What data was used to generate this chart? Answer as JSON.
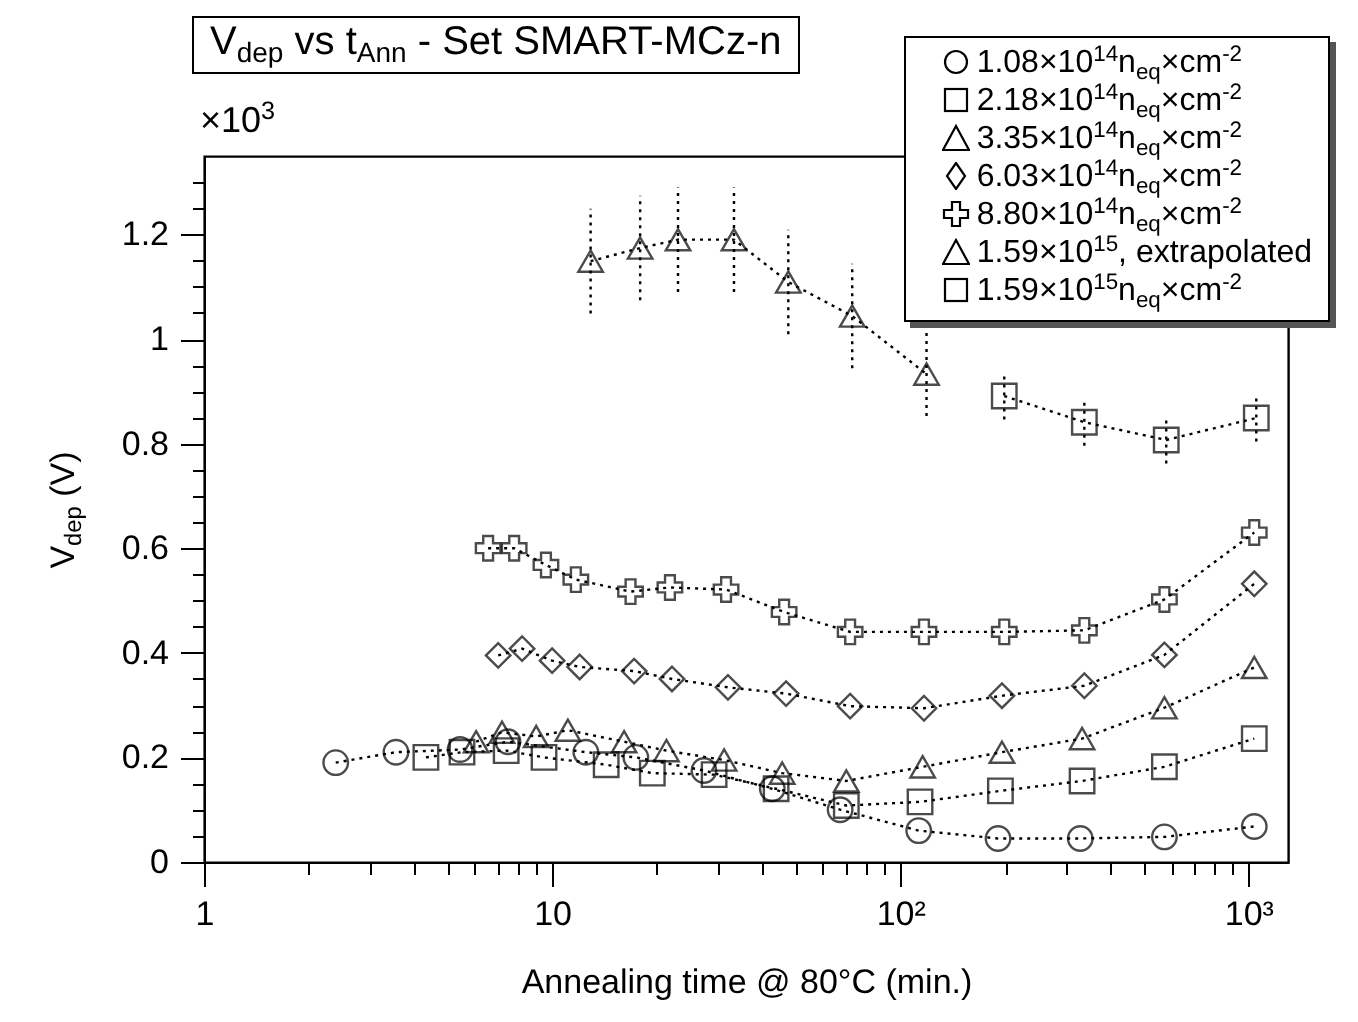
{
  "chart_data": {
    "type": "line",
    "title": "V$_{dep}$ vs t$_{Ann}$ - Set SMART-MCz-n",
    "xlabel": "Annealing time @ 80°C (min.)",
    "ylabel": "V$_{dep}$ (V)",
    "annotations": [
      "×10$^{3}$"
    ],
    "log": "x",
    "grid": false,
    "legend": "top right",
    "line_style": "dotted",
    "xlim": [
      1,
      1300
    ],
    "ylim": [
      0,
      1.35
    ],
    "xticks": [
      {
        "value": 1,
        "label": "1"
      },
      {
        "value": 2,
        "label": null
      },
      {
        "value": 3,
        "label": null
      },
      {
        "value": 4,
        "label": null
      },
      {
        "value": 5,
        "label": null
      },
      {
        "value": 6,
        "label": null
      },
      {
        "value": 7,
        "label": null
      },
      {
        "value": 8,
        "label": null
      },
      {
        "value": 9,
        "label": null
      },
      {
        "value": 10,
        "label": "10"
      },
      {
        "value": 20,
        "label": null
      },
      {
        "value": 30,
        "label": null
      },
      {
        "value": 40,
        "label": null
      },
      {
        "value": 50,
        "label": null
      },
      {
        "value": 60,
        "label": null
      },
      {
        "value": 70,
        "label": null
      },
      {
        "value": 80,
        "label": null
      },
      {
        "value": 90,
        "label": null
      },
      {
        "value": 100,
        "label": "10²"
      },
      {
        "value": 200,
        "label": null
      },
      {
        "value": 300,
        "label": null
      },
      {
        "value": 400,
        "label": null
      },
      {
        "value": 500,
        "label": null
      },
      {
        "value": 600,
        "label": null
      },
      {
        "value": 700,
        "label": null
      },
      {
        "value": 800,
        "label": null
      },
      {
        "value": 900,
        "label": null
      },
      {
        "value": 1000,
        "label": "10³"
      }
    ],
    "yticks": [
      0,
      {
        "value": 0.05,
        "label": null
      },
      {
        "value": 0.1,
        "label": null
      },
      {
        "value": 0.15,
        "label": null
      },
      0.2,
      {
        "value": 0.25,
        "label": null
      },
      {
        "value": 0.3,
        "label": null
      },
      {
        "value": 0.35,
        "label": null
      },
      0.4,
      {
        "value": 0.45,
        "label": null
      },
      {
        "value": 0.5,
        "label": null
      },
      {
        "value": 0.55,
        "label": null
      },
      0.6,
      {
        "value": 0.65,
        "label": null
      },
      {
        "value": 0.7,
        "label": null
      },
      {
        "value": 0.75,
        "label": null
      },
      0.8,
      {
        "value": 0.85,
        "label": null
      },
      {
        "value": 0.9,
        "label": null
      },
      {
        "value": 0.95,
        "label": null
      },
      1,
      {
        "value": 1.05,
        "label": null
      },
      {
        "value": 1.1,
        "label": null
      },
      {
        "value": 1.15,
        "label": null
      },
      1.2,
      {
        "value": 1.25,
        "label": null
      },
      {
        "value": 1.3,
        "label": null
      }
    ],
    "series": [
      {
        "name": "1.08×10$^{14}$n$_{eq}$×cm$^{-2}$",
        "color": "#000000",
        "marker": "circle",
        "x": [
          2.39,
          3.56,
          5.44,
          7.47,
          12.5,
          17.4,
          27.3,
          42.9,
          67.2,
          113,
          191,
          329,
          574,
          1040
        ],
        "values": [
          0.19,
          0.21,
          0.215,
          0.23,
          0.21,
          0.2,
          0.175,
          0.14,
          0.1,
          0.06,
          0.045,
          0.045,
          0.048,
          0.068
        ]
      },
      {
        "name": "2.18×10$^{14}$n$_{eq}$×cm$^{-2}$",
        "color": "#000000",
        "marker": "square",
        "x": [
          4.34,
          5.51,
          7.38,
          9.48,
          14.3,
          19.4,
          29.2,
          44,
          70,
          114,
          194,
          333,
          574,
          1040
        ],
        "values": [
          0.2,
          0.21,
          0.213,
          0.2,
          0.186,
          0.17,
          0.167,
          0.14,
          0.108,
          0.115,
          0.136,
          0.155,
          0.182,
          0.236
        ]
      },
      {
        "name": "3.35×10$^{14}$n$_{eq}$×cm$^{-2}$",
        "color": "#000000",
        "marker": "triangle",
        "x": [
          6.05,
          7.18,
          9.0,
          11.1,
          16.1,
          21.3,
          31.2,
          45.8,
          70,
          116,
          196,
          333,
          574,
          1040
        ],
        "values": [
          0.23,
          0.248,
          0.24,
          0.252,
          0.23,
          0.213,
          0.195,
          0.17,
          0.155,
          0.182,
          0.21,
          0.236,
          0.295,
          0.372
        ]
      },
      {
        "name": "6.03×10$^{14}$n$_{eq}$×cm$^{-2}$",
        "color": "#000000",
        "marker": "diamond",
        "x": [
          7.0,
          8.2,
          10.0,
          12.0,
          17.2,
          22.1,
          32.0,
          47.0,
          71.8,
          117,
          196,
          338,
          574,
          1040
        ],
        "values": [
          0.395,
          0.408,
          0.385,
          0.373,
          0.365,
          0.35,
          0.334,
          0.322,
          0.298,
          0.294,
          0.318,
          0.337,
          0.396,
          0.532
        ]
      },
      {
        "name": "8.80×10$^{14}$n$_{eq}$×cm$^{-2}$",
        "color": "#000000",
        "marker": "cross",
        "x": [
          6.55,
          7.78,
          9.6,
          11.7,
          16.8,
          21.8,
          31.6,
          46.4,
          71.8,
          117,
          199,
          338,
          574,
          1040
        ],
        "values": [
          0.6,
          0.6,
          0.568,
          0.54,
          0.517,
          0.525,
          0.521,
          0.478,
          0.44,
          0.44,
          0.44,
          0.443,
          0.502,
          0.63
        ]
      },
      {
        "name": "1.59×10$^{15}$, extrapolated",
        "color": "#000000",
        "marker": "triangle",
        "x": [
          12.9,
          17.9,
          23.0,
          33.3,
          47.7,
          72.8,
          119
        ],
        "values": [
          1.149,
          1.174,
          1.19,
          1.19,
          1.109,
          1.044,
          0.933
        ],
        "errors": [
          0.1,
          0.1,
          0.1,
          0.1,
          0.1,
          0.1,
          0.08
        ]
      },
      {
        "name": "1.59×10$^{15}$n$_{eq}$×cm$^{-2}$",
        "color": "#000000",
        "marker": "square",
        "x": [
          199,
          338,
          581,
          1054
        ],
        "values": [
          0.891,
          0.841,
          0.807,
          0.849
        ],
        "errors": [
          0.045,
          0.045,
          0.045,
          0.045
        ]
      }
    ]
  }
}
